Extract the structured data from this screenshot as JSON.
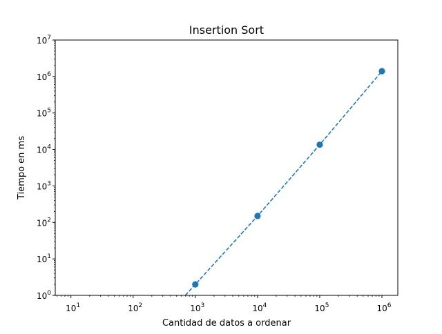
{
  "chart_data": {
    "type": "line",
    "title": "Insertion Sort",
    "xlabel": "Cantidad de datos a ordenar",
    "ylabel": "Tiempo en ms",
    "x_scale": "log",
    "y_scale": "log",
    "xlim": [
      5.6,
      1800000
    ],
    "ylim": [
      1,
      10000000
    ],
    "x_ticks": [
      10,
      100,
      1000,
      10000,
      100000,
      1000000
    ],
    "y_ticks": [
      1,
      10,
      100,
      1000,
      10000,
      100000,
      1000000,
      10000000
    ],
    "grid": false,
    "series": [
      {
        "x": [
          1000,
          10000,
          100000,
          1000000
        ],
        "y": [
          2,
          150,
          13500,
          1400000
        ],
        "color": "#1f77b4",
        "line_style": "dashed",
        "marker": "circle"
      }
    ]
  }
}
